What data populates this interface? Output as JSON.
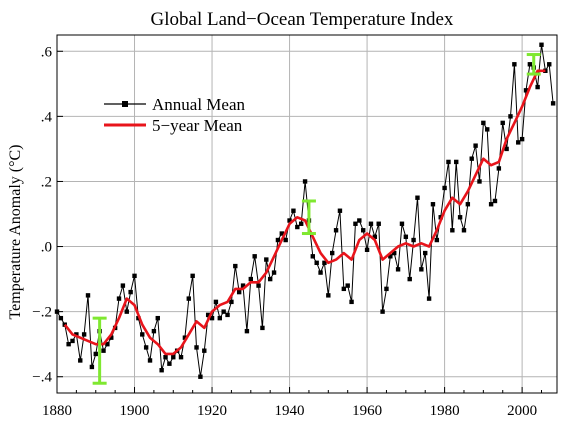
{
  "chart_data": {
    "type": "line",
    "title": "Global Land−Ocean Temperature Index",
    "xlabel": "",
    "ylabel": "Temperature Anomaly (°C)",
    "xlim": [
      1880,
      2009
    ],
    "ylim": [
      -0.45,
      0.65
    ],
    "x_ticks": [
      1880,
      1900,
      1920,
      1940,
      1960,
      1980,
      2000
    ],
    "x_tick_labels": [
      "1880",
      "1900",
      "1920",
      "1940",
      "1960",
      "1980",
      "2000"
    ],
    "y_ticks": [
      -0.4,
      -0.2,
      0.0,
      0.2,
      0.4,
      0.6
    ],
    "y_tick_labels": [
      "−.4",
      "−.2",
      ".0",
      ".2",
      ".4",
      ".6"
    ],
    "grid": true,
    "legend_placement": "upper-left",
    "colors": {
      "annual": "#000000",
      "five_year": "#e8141b",
      "error_bar": "#7fe830",
      "grid": "#b4b4b4"
    },
    "series": [
      {
        "name": "Annual Mean",
        "marker": "square",
        "x": [
          1880,
          1881,
          1882,
          1883,
          1884,
          1885,
          1886,
          1887,
          1888,
          1889,
          1890,
          1891,
          1892,
          1893,
          1894,
          1895,
          1896,
          1897,
          1898,
          1899,
          1900,
          1901,
          1902,
          1903,
          1904,
          1905,
          1906,
          1907,
          1908,
          1909,
          1910,
          1911,
          1912,
          1913,
          1914,
          1915,
          1916,
          1917,
          1918,
          1919,
          1920,
          1921,
          1922,
          1923,
          1924,
          1925,
          1926,
          1927,
          1928,
          1929,
          1930,
          1931,
          1932,
          1933,
          1934,
          1935,
          1936,
          1937,
          1938,
          1939,
          1940,
          1941,
          1942,
          1943,
          1944,
          1945,
          1946,
          1947,
          1948,
          1949,
          1950,
          1951,
          1952,
          1953,
          1954,
          1955,
          1956,
          1957,
          1958,
          1959,
          1960,
          1961,
          1962,
          1963,
          1964,
          1965,
          1966,
          1967,
          1968,
          1969,
          1970,
          1971,
          1972,
          1973,
          1974,
          1975,
          1976,
          1977,
          1978,
          1979,
          1980,
          1981,
          1982,
          1983,
          1984,
          1985,
          1986,
          1987,
          1988,
          1989,
          1990,
          1991,
          1992,
          1993,
          1994,
          1995,
          1996,
          1997,
          1998,
          1999,
          2000,
          2001,
          2002,
          2003,
          2004,
          2005,
          2006,
          2007,
          2008
        ],
        "values": [
          -0.2,
          -0.22,
          -0.24,
          -0.3,
          -0.29,
          -0.27,
          -0.35,
          -0.27,
          -0.15,
          -0.37,
          -0.33,
          -0.26,
          -0.32,
          -0.3,
          -0.28,
          -0.25,
          -0.16,
          -0.12,
          -0.2,
          -0.14,
          -0.09,
          -0.22,
          -0.27,
          -0.31,
          -0.35,
          -0.26,
          -0.22,
          -0.38,
          -0.34,
          -0.36,
          -0.34,
          -0.32,
          -0.34,
          -0.28,
          -0.16,
          -0.09,
          -0.31,
          -0.4,
          -0.32,
          -0.21,
          -0.22,
          -0.17,
          -0.22,
          -0.2,
          -0.21,
          -0.17,
          -0.06,
          -0.14,
          -0.12,
          -0.26,
          -0.1,
          -0.03,
          -0.12,
          -0.25,
          -0.04,
          -0.1,
          -0.08,
          0.02,
          0.04,
          0.02,
          0.08,
          0.11,
          0.06,
          0.07,
          0.2,
          0.08,
          -0.03,
          -0.05,
          -0.08,
          -0.05,
          -0.15,
          -0.02,
          0.05,
          0.11,
          -0.13,
          -0.12,
          -0.17,
          0.07,
          0.08,
          0.05,
          -0.01,
          0.07,
          0.03,
          0.07,
          -0.2,
          -0.13,
          -0.03,
          -0.02,
          -0.07,
          0.07,
          0.03,
          -0.1,
          0.02,
          0.15,
          -0.07,
          -0.02,
          -0.16,
          0.13,
          0.02,
          0.09,
          0.18,
          0.26,
          0.05,
          0.26,
          0.09,
          0.05,
          0.13,
          0.27,
          0.31,
          0.2,
          0.38,
          0.36,
          0.13,
          0.14,
          0.24,
          0.38,
          0.3,
          0.4,
          0.56,
          0.32,
          0.33,
          0.48,
          0.56,
          0.55,
          0.49,
          0.62,
          0.54,
          0.56,
          0.44
        ]
      },
      {
        "name": "5−year Mean",
        "x": [
          1882,
          1884,
          1886,
          1888,
          1890,
          1892,
          1894,
          1896,
          1898,
          1900,
          1902,
          1904,
          1906,
          1908,
          1910,
          1912,
          1914,
          1916,
          1918,
          1920,
          1922,
          1924,
          1926,
          1928,
          1930,
          1932,
          1934,
          1936,
          1938,
          1940,
          1942,
          1944,
          1946,
          1948,
          1950,
          1952,
          1954,
          1956,
          1958,
          1960,
          1962,
          1964,
          1966,
          1968,
          1970,
          1972,
          1974,
          1976,
          1978,
          1980,
          1982,
          1984,
          1986,
          1988,
          1990,
          1992,
          1994,
          1996,
          1998,
          2000,
          2002,
          2004,
          2006
        ],
        "values": [
          -0.24,
          -0.27,
          -0.28,
          -0.29,
          -0.3,
          -0.3,
          -0.27,
          -0.22,
          -0.16,
          -0.18,
          -0.24,
          -0.28,
          -0.3,
          -0.33,
          -0.33,
          -0.31,
          -0.27,
          -0.23,
          -0.25,
          -0.2,
          -0.18,
          -0.17,
          -0.13,
          -0.13,
          -0.11,
          -0.11,
          -0.08,
          -0.03,
          0.02,
          0.07,
          0.09,
          0.08,
          0.03,
          -0.02,
          -0.05,
          -0.04,
          -0.02,
          -0.04,
          0.02,
          0.04,
          0.02,
          -0.04,
          -0.02,
          0.0,
          0.01,
          0.0,
          0.01,
          0.0,
          0.05,
          0.11,
          0.15,
          0.13,
          0.17,
          0.22,
          0.27,
          0.25,
          0.26,
          0.33,
          0.38,
          0.43,
          0.49,
          0.54,
          0.54
        ]
      }
    ],
    "error_bars": [
      {
        "x": 1891,
        "low": -0.42,
        "high": -0.22
      },
      {
        "x": 1945,
        "low": 0.04,
        "high": 0.14
      },
      {
        "x": 2003,
        "low": 0.53,
        "high": 0.59
      }
    ]
  }
}
